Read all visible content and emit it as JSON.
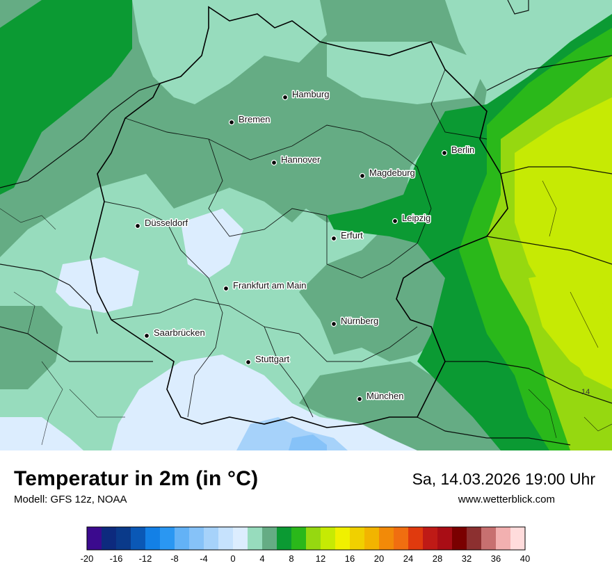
{
  "title": "Temperatur in 2m (in °C)",
  "model": "Modell: GFS 12z, NOAA",
  "datetime": "Sa, 14.03.2026 19:00 Uhr",
  "website": "www.wetterblick.com",
  "map_value_label": "14",
  "cities": [
    {
      "name": "Hamburg"
    },
    {
      "name": "Bremen"
    },
    {
      "name": "Hannover"
    },
    {
      "name": "Berlin"
    },
    {
      "name": "Magdeburg"
    },
    {
      "name": "Leipzig"
    },
    {
      "name": "Düsseldorf"
    },
    {
      "name": "Erfurt"
    },
    {
      "name": "Frankfurt am Main"
    },
    {
      "name": "Nürnberg"
    },
    {
      "name": "Saarbrücken"
    },
    {
      "name": "Stuttgart"
    },
    {
      "name": "München"
    }
  ],
  "legend": {
    "ticks": [
      "-20",
      "-16",
      "-12",
      "-8",
      "-4",
      "0",
      "4",
      "8",
      "12",
      "16",
      "20",
      "24",
      "28",
      "32",
      "36",
      "40"
    ],
    "colors": [
      "#3b0a8e",
      "#0d2a7e",
      "#0a3a8a",
      "#0a58b6",
      "#1380e6",
      "#2a97f2",
      "#63b2f6",
      "#86c2f8",
      "#a6d2fa",
      "#c6e2fd",
      "#dcedfe",
      "#97dcbd",
      "#65ac84",
      "#0b9a33",
      "#2ab81a",
      "#96d810",
      "#c6ea04",
      "#f0f000",
      "#f0d000",
      "#f2b400",
      "#f28a08",
      "#f06e10",
      "#e03a0e",
      "#bf1a16",
      "#a90d15",
      "#7a0000",
      "#8c3030",
      "#c77070",
      "#f2b0b0",
      "#ffdcdc"
    ]
  }
}
